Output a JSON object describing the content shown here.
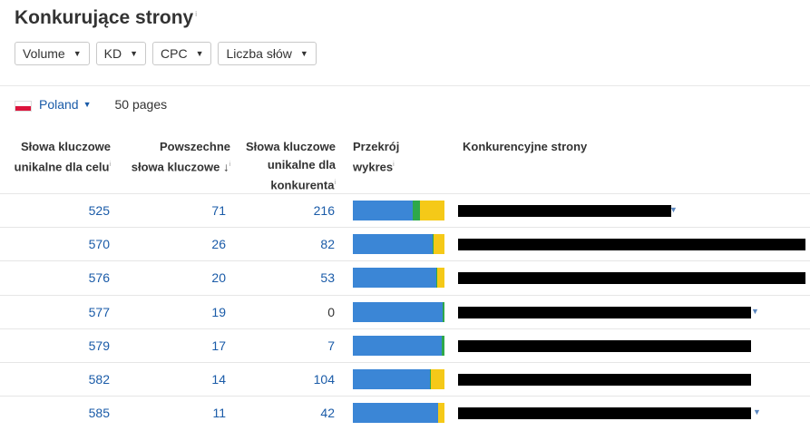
{
  "title": "Konkurujące strony",
  "info_mark": "i",
  "filters": [
    "Volume",
    "KD",
    "CPC",
    "Liczba słów"
  ],
  "country": "Poland",
  "pages_count": "50 pages",
  "columns": {
    "unique_target": [
      "Słowa kluczowe",
      "unikalne dla celu"
    ],
    "common": [
      "Powszechne",
      "słowa kluczowe"
    ],
    "sort_arrow": "↓",
    "unique_competitor": [
      "Słowa kluczowe",
      "unikalne dla",
      "konkurenta"
    ],
    "breakdown": [
      "Przekrój",
      "wykres"
    ],
    "pages": "Konkurencyjne strony"
  },
  "colors": {
    "blue": "#3b86d6",
    "green": "#2ea84a",
    "yellow": "#f5c918",
    "link": "#1a5ba8"
  },
  "rows": [
    {
      "unique_target": "525",
      "common": "71",
      "unique_competitor": "216",
      "unique_competitor_link": true,
      "breakdown": [
        0.65,
        0.08,
        0.27
      ],
      "has_caret": true
    },
    {
      "unique_target": "570",
      "common": "26",
      "unique_competitor": "82",
      "unique_competitor_link": true,
      "breakdown": [
        0.87,
        0.01,
        0.12
      ],
      "has_caret": false
    },
    {
      "unique_target": "576",
      "common": "20",
      "unique_competitor": "53",
      "unique_competitor_link": true,
      "breakdown": [
        0.91,
        0.01,
        0.08
      ],
      "has_caret": false
    },
    {
      "unique_target": "577",
      "common": "19",
      "unique_competitor": "0",
      "unique_competitor_link": false,
      "breakdown": [
        0.98,
        0.02,
        0.0
      ],
      "has_caret": true
    },
    {
      "unique_target": "579",
      "common": "17",
      "unique_competitor": "7",
      "unique_competitor_link": true,
      "breakdown": [
        0.97,
        0.03,
        0.0
      ],
      "has_caret": false
    },
    {
      "unique_target": "582",
      "common": "14",
      "unique_competitor": "104",
      "unique_competitor_link": true,
      "breakdown": [
        0.84,
        0.01,
        0.15
      ],
      "has_caret": false
    },
    {
      "unique_target": "585",
      "common": "11",
      "unique_competitor": "42",
      "unique_competitor_link": true,
      "breakdown": [
        0.93,
        0.0,
        0.07
      ],
      "has_caret": true
    }
  ]
}
